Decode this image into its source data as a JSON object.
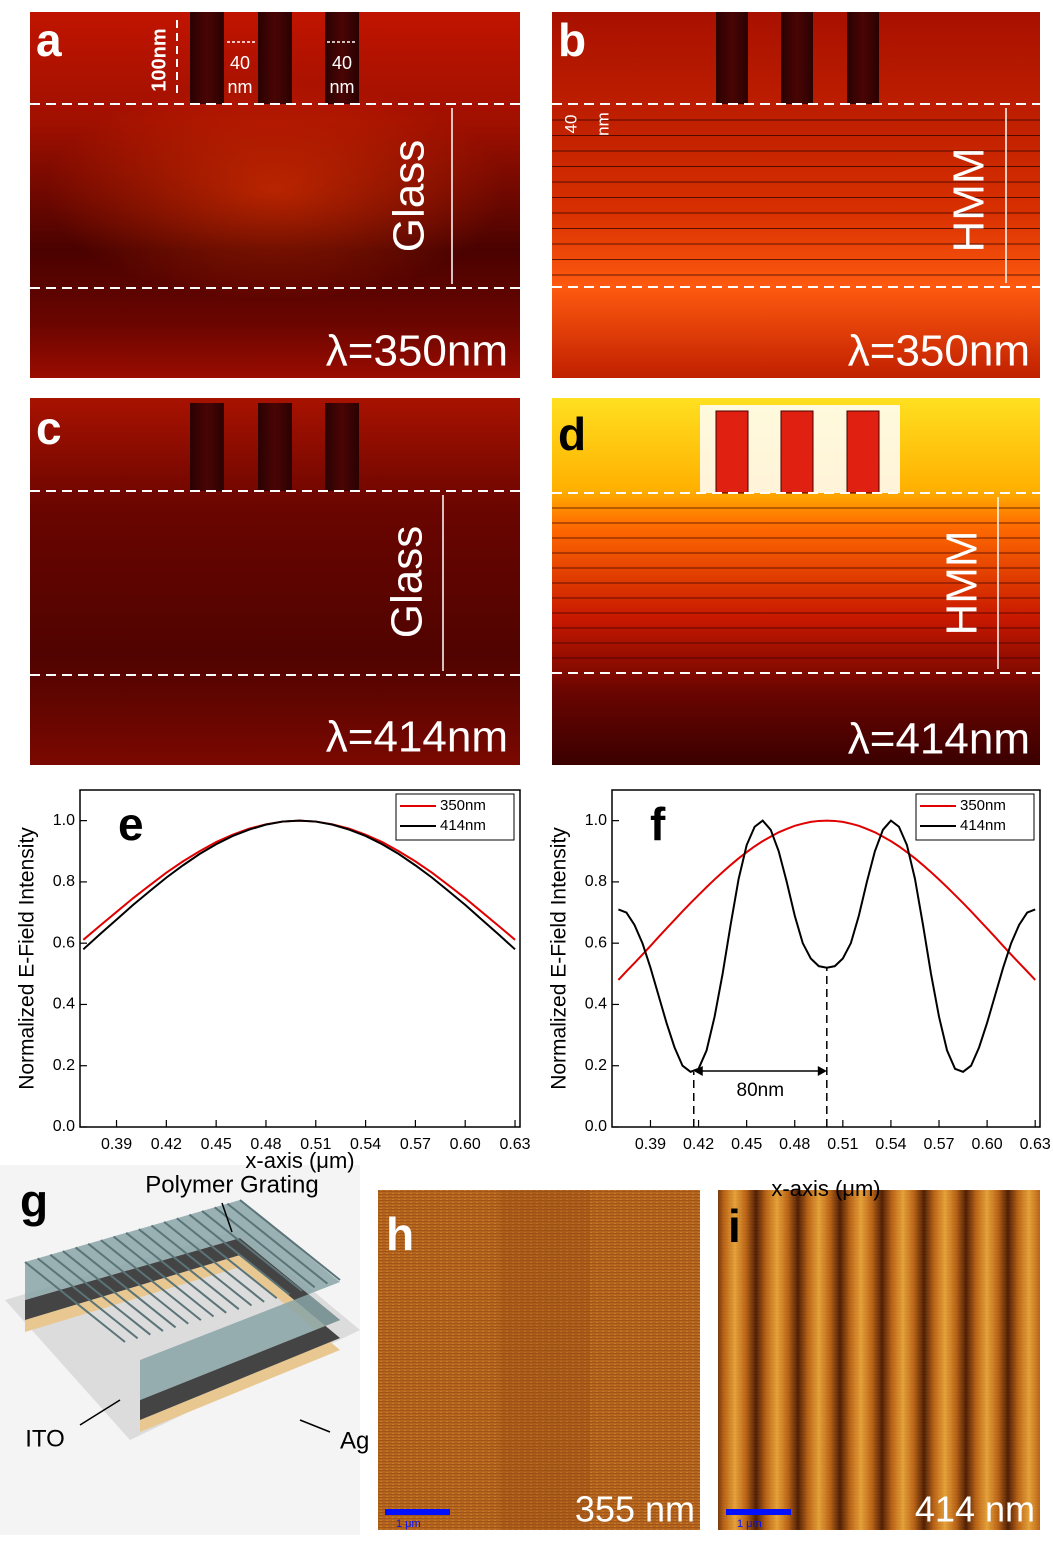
{
  "panels": {
    "a": {
      "label": "a",
      "height_label": "100nm",
      "gaps": [
        [
          "40",
          "nm"
        ],
        [
          "40",
          "nm"
        ]
      ],
      "region": "Glass",
      "wavelength": "λ=350nm"
    },
    "b": {
      "label": "b",
      "layer": [
        "40",
        "nm"
      ],
      "region": "HMM",
      "wavelength": "λ=350nm"
    },
    "c": {
      "label": "c",
      "region": "Glass",
      "wavelength": "λ=414nm"
    },
    "d": {
      "label": "d",
      "region": "HMM",
      "wavelength": "λ=414nm"
    },
    "g": {
      "label": "g",
      "labels": [
        "Polymer Grating",
        "ITO",
        "Ag"
      ]
    },
    "h": {
      "label": "h",
      "scale": "1 μm",
      "wavelength": "355 nm"
    },
    "i": {
      "label": "i",
      "scale": "1 μm",
      "wavelength": "414 nm"
    }
  },
  "chart_data": [
    {
      "type": "line",
      "panel_label": "e",
      "xlabel": "x-axis (μm)",
      "ylabel": "Normalized E-Field Intensity",
      "x": [
        0.37,
        0.38,
        0.39,
        0.4,
        0.41,
        0.42,
        0.43,
        0.44,
        0.45,
        0.46,
        0.47,
        0.48,
        0.49,
        0.5,
        0.51,
        0.52,
        0.53,
        0.54,
        0.55,
        0.56,
        0.57,
        0.58,
        0.59,
        0.6,
        0.61,
        0.62,
        0.63
      ],
      "series": [
        {
          "name": "350nm",
          "color": "#e00000",
          "values": [
            0.611,
            0.657,
            0.702,
            0.747,
            0.789,
            0.83,
            0.867,
            0.9,
            0.93,
            0.954,
            0.974,
            0.988,
            0.997,
            1,
            0.997,
            0.988,
            0.974,
            0.954,
            0.93,
            0.9,
            0.867,
            0.83,
            0.789,
            0.747,
            0.702,
            0.657,
            0.611
          ]
        },
        {
          "name": "414nm",
          "color": "#000000",
          "values": [
            0.58,
            0.629,
            0.677,
            0.725,
            0.77,
            0.814,
            0.854,
            0.891,
            0.923,
            0.95,
            0.971,
            0.987,
            0.997,
            1,
            0.997,
            0.987,
            0.971,
            0.95,
            0.923,
            0.891,
            0.854,
            0.814,
            0.77,
            0.725,
            0.677,
            0.629,
            0.58
          ]
        }
      ],
      "xlim": [
        0.368,
        0.633
      ],
      "ylim": [
        0,
        1.1
      ],
      "xticks": [
        0.39,
        0.42,
        0.45,
        0.48,
        0.51,
        0.54,
        0.57,
        {
          "value": 0.6,
          "label": "0.60"
        },
        0.63
      ],
      "yticks": [
        {
          "value": 0,
          "label": "0.0"
        },
        0.2,
        0.4,
        0.6,
        0.8,
        {
          "value": 1,
          "label": "1.0"
        }
      ],
      "legend": "upper right"
    },
    {
      "type": "line",
      "panel_label": "f",
      "xlabel": "x-axis (μm)",
      "ylabel": "Normalized E-Field Intensity",
      "x": [
        0.37,
        0.375,
        0.38,
        0.385,
        0.39,
        0.395,
        0.4,
        0.405,
        0.41,
        0.415,
        0.42,
        0.425,
        0.43,
        0.435,
        0.44,
        0.445,
        0.45,
        0.455,
        0.46,
        0.465,
        0.47,
        0.475,
        0.48,
        0.485,
        0.49,
        0.495,
        0.5,
        0.505,
        0.51,
        0.515,
        0.52,
        0.525,
        0.53,
        0.535,
        0.54,
        0.545,
        0.55,
        0.555,
        0.56,
        0.565,
        0.57,
        0.575,
        0.58,
        0.585,
        0.59,
        0.595,
        0.6,
        0.605,
        0.61,
        0.615,
        0.62,
        0.625,
        0.63
      ],
      "series": [
        {
          "name": "350nm",
          "color": "#e00000",
          "values": [
            0.48,
            0.508,
            0.535,
            0.563,
            0.591,
            0.62,
            0.648,
            0.676,
            0.704,
            0.731,
            0.757,
            0.783,
            0.808,
            0.832,
            0.855,
            0.877,
            0.897,
            0.916,
            0.933,
            0.948,
            0.962,
            0.973,
            0.983,
            0.99,
            0.996,
            0.999,
            1,
            0.999,
            0.996,
            0.99,
            0.983,
            0.973,
            0.962,
            0.948,
            0.933,
            0.916,
            0.897,
            0.877,
            0.855,
            0.832,
            0.808,
            0.783,
            0.757,
            0.731,
            0.704,
            0.676,
            0.648,
            0.62,
            0.591,
            0.563,
            0.535,
            0.508,
            0.48
          ]
        },
        {
          "name": "414nm",
          "color": "#000000",
          "values": [
            0.71,
            0.7,
            0.66,
            0.6,
            0.52,
            0.43,
            0.34,
            0.26,
            0.2,
            0.18,
            0.19,
            0.25,
            0.36,
            0.5,
            0.66,
            0.81,
            0.92,
            0.98,
            1,
            0.97,
            0.9,
            0.8,
            0.69,
            0.6,
            0.55,
            0.525,
            0.52,
            0.525,
            0.55,
            0.6,
            0.69,
            0.8,
            0.9,
            0.97,
            1,
            0.98,
            0.92,
            0.81,
            0.66,
            0.5,
            0.36,
            0.25,
            0.19,
            0.18,
            0.2,
            0.26,
            0.34,
            0.43,
            0.52,
            0.6,
            0.66,
            0.7,
            0.71
          ]
        }
      ],
      "xlim": [
        0.366,
        0.633
      ],
      "ylim": [
        0,
        1.1
      ],
      "xticks": [
        0.39,
        0.42,
        0.45,
        0.48,
        0.51,
        0.54,
        0.57,
        {
          "value": 0.6,
          "label": "0.60"
        },
        0.63
      ],
      "yticks": [
        {
          "value": 0,
          "label": "0.0"
        },
        0.2,
        0.4,
        0.6,
        0.8,
        {
          "value": 1,
          "label": "1.0"
        }
      ],
      "legend": "upper right",
      "annotations": [
        {
          "text": "80nm",
          "x": [
            0.417,
            0.5
          ],
          "y": [
            0.18,
            0.52
          ]
        }
      ]
    }
  ]
}
